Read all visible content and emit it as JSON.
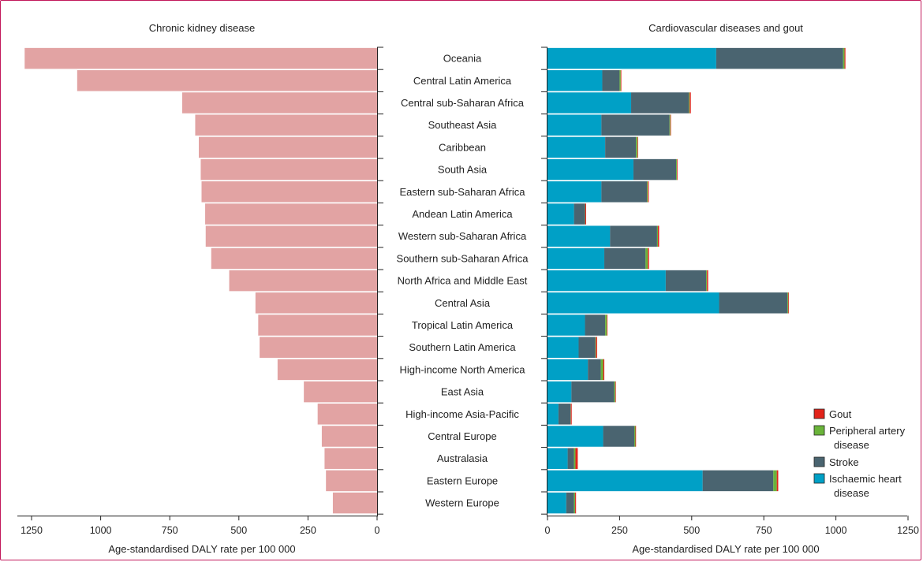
{
  "chart_data": [
    {
      "type": "bar",
      "orientation": "horizontal",
      "direction": "right-to-left",
      "title": "Chronic kidney disease",
      "xlabel": "Age-standardised DALY rate per 100 000",
      "xlim": [
        0,
        1300
      ],
      "xticks": [
        "1250",
        "1000",
        "750",
        "500",
        "250",
        "0"
      ],
      "color": "#e2a3a3",
      "categories": [
        "Oceania",
        "Central Latin America",
        "Central sub-Saharan Africa",
        "Southeast Asia",
        "Caribbean",
        "South Asia",
        "Eastern sub-Saharan Africa",
        "Andean Latin America",
        "Western sub-Saharan Africa",
        "Southern sub-Saharan Africa",
        "North Africa and Middle East",
        "Central Asia",
        "Tropical Latin America",
        "Southern Latin America",
        "High-income North America",
        "East Asia",
        "High-income Asia-Pacific",
        "Central Europe",
        "Australasia",
        "Eastern Europe",
        "Western Europe"
      ],
      "values": [
        1275,
        1085,
        705,
        658,
        645,
        638,
        635,
        622,
        620,
        600,
        535,
        440,
        430,
        425,
        360,
        265,
        215,
        200,
        190,
        185,
        160
      ]
    },
    {
      "type": "bar",
      "orientation": "horizontal",
      "stacked": true,
      "title": "Cardiovascular diseases and gout",
      "xlabel": "Age-standardised DALY rate per 100 000",
      "xlim": [
        0,
        1250
      ],
      "xticks": [
        "0",
        "250",
        "500",
        "750",
        "1000",
        "1250"
      ],
      "legend_position": "bottom-right",
      "categories": [
        "Oceania",
        "Central Latin America",
        "Central sub-Saharan Africa",
        "Southeast Asia",
        "Caribbean",
        "South Asia",
        "Eastern sub-Saharan Africa",
        "Andean Latin America",
        "Western sub-Saharan Africa",
        "Southern sub-Saharan Africa",
        "North Africa and Middle East",
        "Central Asia",
        "Tropical Latin America",
        "Southern Latin America",
        "High-income North America",
        "East Asia",
        "High-income Asia-Pacific",
        "Central Europe",
        "Australasia",
        "Eastern Europe",
        "Western Europe"
      ],
      "series": [
        {
          "name": "Ischaemic heart disease",
          "color": "#00a0c6",
          "values": [
            585,
            190,
            290,
            187,
            200,
            298,
            187,
            92,
            217,
            197,
            410,
            595,
            130,
            108,
            140,
            83,
            38,
            193,
            70,
            538,
            65
          ]
        },
        {
          "name": "Stroke",
          "color": "#4a6470",
          "values": [
            440,
            60,
            200,
            236,
            107,
            148,
            158,
            38,
            163,
            143,
            140,
            237,
            70,
            58,
            45,
            148,
            42,
            108,
            22,
            245,
            27
          ]
        },
        {
          "name": "Peripheral artery disease",
          "color": "#6ab43a",
          "values": [
            5,
            4,
            3,
            3,
            5,
            3,
            3,
            1,
            3,
            8,
            3,
            3,
            6,
            2,
            8,
            4,
            1,
            4,
            5,
            12,
            4
          ]
        },
        {
          "name": "Gout",
          "color": "#e2231a",
          "values": [
            3,
            2,
            4,
            2,
            2,
            2,
            3,
            3,
            4,
            4,
            4,
            2,
            2,
            4,
            4,
            2,
            3,
            2,
            8,
            5,
            3
          ]
        }
      ]
    }
  ]
}
